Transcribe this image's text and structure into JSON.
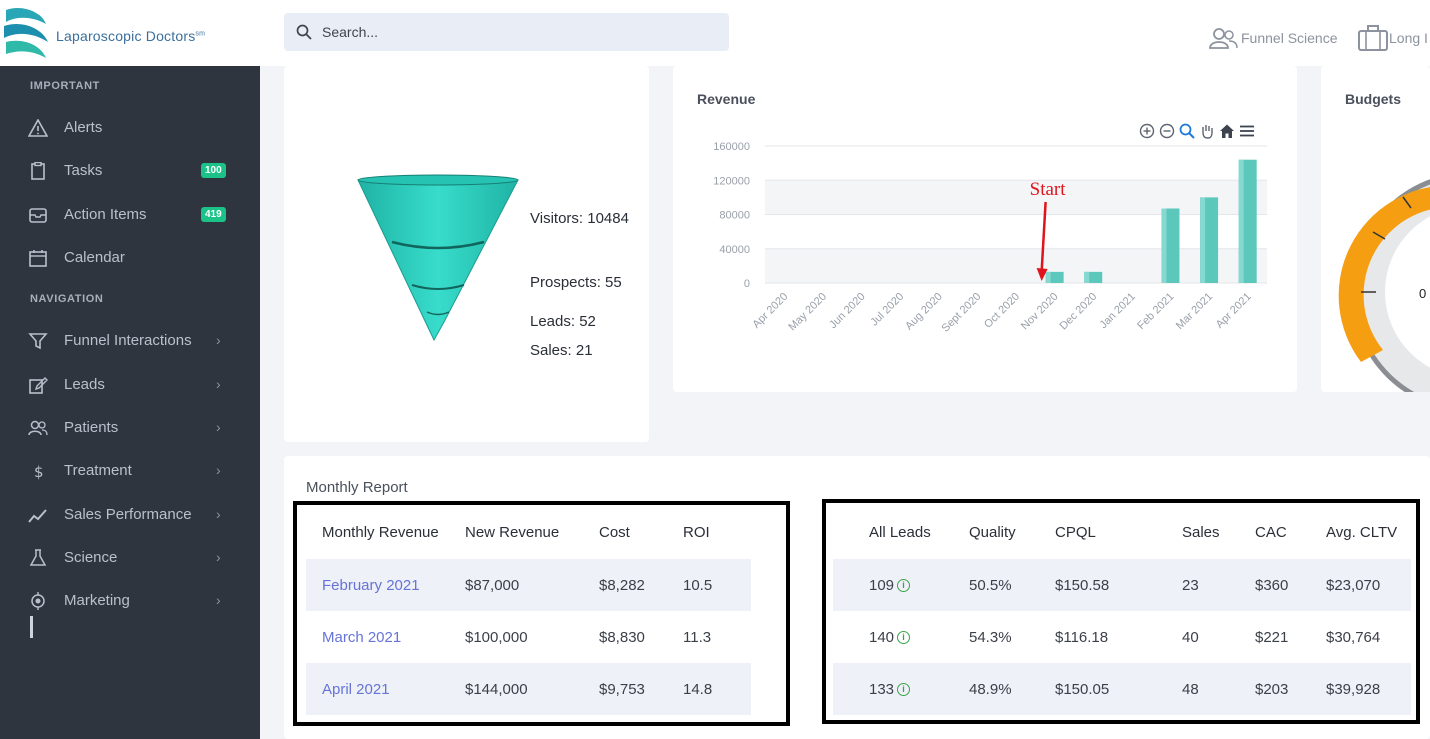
{
  "brand": {
    "name": "Laparoscopic Doctors",
    "mark": "sm"
  },
  "sidebar": {
    "sections": [
      {
        "title": "IMPORTANT"
      },
      {
        "title": "NAVIGATION"
      }
    ],
    "important": [
      {
        "label": "Alerts",
        "icon": "alert-triangle-icon"
      },
      {
        "label": "Tasks",
        "icon": "clipboard-icon",
        "badge": "100"
      },
      {
        "label": "Action Items",
        "icon": "inbox-icon",
        "badge": "419"
      },
      {
        "label": "Calendar",
        "icon": "calendar-icon"
      }
    ],
    "navigation": [
      {
        "label": "Funnel Interactions",
        "icon": "filter-icon"
      },
      {
        "label": "Leads",
        "icon": "edit-icon"
      },
      {
        "label": "Patients",
        "icon": "users-icon"
      },
      {
        "label": "Treatment",
        "icon": "dollar-icon"
      },
      {
        "label": "Sales Performance",
        "icon": "trend-icon"
      },
      {
        "label": "Science",
        "icon": "flask-icon"
      },
      {
        "label": "Marketing",
        "icon": "target-icon"
      }
    ],
    "badge_color": "#1bc389"
  },
  "search": {
    "placeholder": "Search..."
  },
  "topbar": {
    "funnel_science": "Funnel Science",
    "long": "Long I"
  },
  "funnel": {
    "visitors": "Visitors: 10484",
    "prospects": "Prospects: 55",
    "leads": "Leads: 52",
    "sales": "Sales: 21",
    "color": "#2ad1c0"
  },
  "revenue_card": {
    "title": "Revenue",
    "annotation": "Start"
  },
  "budgets_card": {
    "title": "Budgets",
    "gauge_value": "0"
  },
  "chart_data": {
    "type": "bar",
    "title": "Revenue",
    "categories": [
      "Apr 2020",
      "May 2020",
      "Jun 2020",
      "Jul 2020",
      "Aug 2020",
      "Sept 2020",
      "Oct 2020",
      "Nov 2020",
      "Dec 2020",
      "Jan 2021",
      "Feb 2021",
      "Mar 2021",
      "Apr 2021"
    ],
    "values": [
      0,
      0,
      0,
      0,
      0,
      0,
      0,
      13000,
      13000,
      0,
      87000,
      100000,
      144000
    ],
    "yticks": [
      0,
      40000,
      80000,
      120000,
      160000
    ],
    "ylim": [
      0,
      160000
    ],
    "color": "#5cc8bc",
    "annotation": {
      "text": "Start",
      "category": "Nov 2020"
    }
  },
  "monthly_report": {
    "title": "Monthly Report",
    "left_table": {
      "headers": [
        "Monthly Revenue",
        "New Revenue",
        "Cost",
        "ROI"
      ],
      "rows": [
        [
          "February 2021",
          "$87,000",
          "$8,282",
          "10.5"
        ],
        [
          "March 2021",
          "$100,000",
          "$8,830",
          "11.3"
        ],
        [
          "April 2021",
          "$144,000",
          "$9,753",
          "14.8"
        ]
      ]
    },
    "right_table": {
      "headers": [
        "All Leads",
        "Quality",
        "CPQL",
        "Sales",
        "CAC",
        "Avg. CLTV"
      ],
      "rows": [
        [
          "109",
          "50.5%",
          "$150.58",
          "23",
          "$360",
          "$23,070"
        ],
        [
          "140",
          "54.3%",
          "$116.18",
          "40",
          "$221",
          "$30,764"
        ],
        [
          "133",
          "48.9%",
          "$150.05",
          "48",
          "$203",
          "$39,928"
        ]
      ]
    }
  }
}
